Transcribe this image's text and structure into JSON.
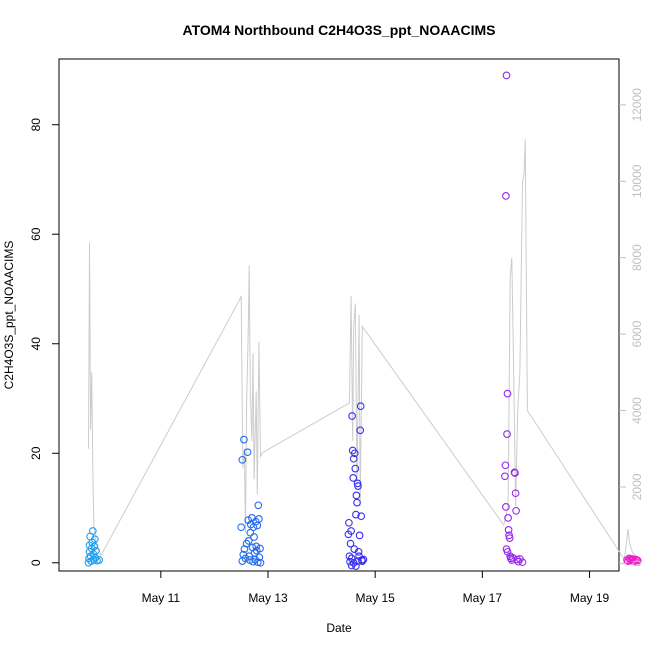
{
  "chart_data": {
    "type": "scatter",
    "title": "ATOM4 Northbound C2H4O3S_ppt_NOAACIMS",
    "xlabel": "Date",
    "ylabel": "C2H4O3S_ppt_NOAACIMS",
    "x_unit": "days since May 10 00:00",
    "xlim": [
      -0.9,
      9.55
    ],
    "ylim": [
      -1.5,
      92
    ],
    "x_ticks": [
      {
        "value": 1,
        "label": "May 11"
      },
      {
        "value": 3,
        "label": "May 13"
      },
      {
        "value": 5,
        "label": "May 15"
      },
      {
        "value": 7,
        "label": "May 17"
      },
      {
        "value": 9,
        "label": "May 19"
      }
    ],
    "y_ticks": [
      0,
      20,
      40,
      60,
      80
    ],
    "y2_ticks": [
      0,
      2000,
      4000,
      6000,
      8000,
      10000,
      12000
    ],
    "y2lim": [
      -200,
      13200
    ],
    "grid": false,
    "series": [
      {
        "name": "C2H4O3S_ppt_NOAACIMS",
        "kind": "points",
        "marker": "open-circle",
        "color_scale": [
          "#1EA0F0",
          "#1E7BEF",
          "#3A2BEF",
          "#8E2BF0",
          "#F01EC8"
        ],
        "points": [
          [
            -0.35,
            0.0
          ],
          [
            -0.34,
            0.8
          ],
          [
            -0.33,
            2.0
          ],
          [
            -0.33,
            3.2
          ],
          [
            -0.32,
            4.8
          ],
          [
            -0.31,
            1.2
          ],
          [
            -0.3,
            0.3
          ],
          [
            -0.29,
            2.6
          ],
          [
            -0.28,
            3.7
          ],
          [
            -0.27,
            5.8
          ],
          [
            -0.26,
            1.6
          ],
          [
            -0.25,
            0.6
          ],
          [
            -0.24,
            3.0
          ],
          [
            -0.23,
            4.3
          ],
          [
            -0.22,
            0.9
          ],
          [
            -0.21,
            2.2
          ],
          [
            -0.19,
            0.4
          ],
          [
            -0.15,
            0.5
          ],
          [
            2.52,
            18.8
          ],
          [
            2.55,
            22.5
          ],
          [
            2.5,
            6.5
          ],
          [
            2.52,
            0.3
          ],
          [
            2.54,
            1.5
          ],
          [
            2.56,
            2.5
          ],
          [
            2.58,
            0.8
          ],
          [
            2.6,
            3.5
          ],
          [
            2.62,
            20.2
          ],
          [
            2.63,
            7.8
          ],
          [
            2.64,
            4.0
          ],
          [
            2.65,
            1.2
          ],
          [
            2.66,
            0.5
          ],
          [
            2.67,
            5.5
          ],
          [
            2.68,
            7.0
          ],
          [
            2.7,
            8.2
          ],
          [
            2.71,
            2.8
          ],
          [
            2.72,
            0.2
          ],
          [
            2.73,
            6.5
          ],
          [
            2.74,
            4.7
          ],
          [
            2.75,
            1.8
          ],
          [
            2.76,
            0.6
          ],
          [
            2.77,
            7.5
          ],
          [
            2.78,
            3.0
          ],
          [
            2.79,
            2.2
          ],
          [
            2.8,
            6.8
          ],
          [
            2.81,
            0.1
          ],
          [
            2.82,
            10.5
          ],
          [
            2.83,
            8.0
          ],
          [
            2.84,
            1.0
          ],
          [
            2.85,
            2.6
          ],
          [
            2.86,
            0.0
          ],
          [
            4.5,
            5.2
          ],
          [
            4.51,
            7.3
          ],
          [
            4.52,
            1.2
          ],
          [
            4.53,
            0.2
          ],
          [
            4.54,
            3.5
          ],
          [
            4.55,
            5.8
          ],
          [
            4.56,
            0.8
          ],
          [
            4.57,
            26.8
          ],
          [
            4.58,
            20.5
          ],
          [
            4.59,
            15.5
          ],
          [
            4.6,
            19.0
          ],
          [
            4.61,
            2.5
          ],
          [
            4.62,
            20.0
          ],
          [
            4.63,
            17.2
          ],
          [
            4.64,
            8.8
          ],
          [
            4.65,
            12.3
          ],
          [
            4.66,
            11.0
          ],
          [
            4.67,
            14.5
          ],
          [
            4.68,
            14.0
          ],
          [
            4.69,
            2.0
          ],
          [
            4.7,
            1.2
          ],
          [
            4.71,
            5.0
          ],
          [
            4.72,
            24.2
          ],
          [
            4.73,
            28.6
          ],
          [
            4.74,
            8.5
          ],
          [
            4.75,
            0.5
          ],
          [
            4.76,
            0.3
          ],
          [
            4.78,
            0.6
          ],
          [
            4.56,
            -0.5
          ],
          [
            4.6,
            0.0
          ],
          [
            4.64,
            -0.6
          ],
          [
            4.68,
            0.3
          ],
          [
            7.45,
            89.0
          ],
          [
            7.44,
            67.0
          ],
          [
            7.47,
            30.9
          ],
          [
            7.46,
            23.5
          ],
          [
            7.43,
            17.8
          ],
          [
            7.42,
            15.8
          ],
          [
            7.44,
            10.2
          ],
          [
            7.48,
            8.2
          ],
          [
            7.49,
            6.0
          ],
          [
            7.5,
            5.0
          ],
          [
            7.51,
            4.5
          ],
          [
            7.45,
            2.5
          ],
          [
            7.47,
            2.0
          ],
          [
            7.52,
            1.2
          ],
          [
            7.53,
            0.8
          ],
          [
            7.55,
            0.5
          ],
          [
            7.57,
            0.9
          ],
          [
            7.6,
            16.5
          ],
          [
            7.61,
            16.4
          ],
          [
            7.62,
            12.7
          ],
          [
            7.63,
            9.5
          ],
          [
            7.65,
            0.6
          ],
          [
            7.67,
            0.2
          ],
          [
            7.7,
            0.7
          ],
          [
            7.75,
            0.1
          ],
          [
            9.7,
            0.5
          ],
          [
            9.72,
            0.3
          ],
          [
            9.74,
            0.8
          ],
          [
            9.76,
            0.6
          ],
          [
            9.78,
            0.4
          ],
          [
            9.8,
            0.7
          ],
          [
            9.82,
            0.5
          ],
          [
            9.84,
            0.3
          ],
          [
            9.86,
            0.6
          ],
          [
            9.88,
            0.5
          ],
          [
            9.9,
            0.4
          ]
        ]
      },
      {
        "name": "secondary (right axis)",
        "kind": "line",
        "axis": "right",
        "color": "#cccccc",
        "points": [
          [
            -0.35,
            3000
          ],
          [
            -0.33,
            8400
          ],
          [
            -0.31,
            3500
          ],
          [
            -0.29,
            5000
          ],
          [
            -0.27,
            2500
          ],
          [
            -0.25,
            1000
          ],
          [
            -0.2,
            500
          ],
          [
            -0.12,
            200
          ],
          [
            2.47,
            6900
          ],
          [
            2.5,
            7000
          ],
          [
            2.53,
            2500
          ],
          [
            2.56,
            3000
          ],
          [
            2.58,
            800
          ],
          [
            2.6,
            4200
          ],
          [
            2.63,
            6000
          ],
          [
            2.65,
            7800
          ],
          [
            2.67,
            4500
          ],
          [
            2.7,
            3200
          ],
          [
            2.72,
            5500
          ],
          [
            2.74,
            2200
          ],
          [
            2.78,
            4500
          ],
          [
            2.8,
            1800
          ],
          [
            2.83,
            5800
          ],
          [
            2.86,
            2800
          ],
          [
            2.9,
            2900
          ],
          [
            4.52,
            4200
          ],
          [
            4.55,
            7000
          ],
          [
            4.58,
            3200
          ],
          [
            4.6,
            6200
          ],
          [
            4.63,
            6800
          ],
          [
            4.66,
            2000
          ],
          [
            4.7,
            6500
          ],
          [
            4.72,
            1500
          ],
          [
            4.76,
            6200
          ],
          [
            7.4,
            1000
          ],
          [
            7.48,
            1500
          ],
          [
            7.52,
            7500
          ],
          [
            7.55,
            8000
          ],
          [
            7.58,
            5500
          ],
          [
            7.62,
            1500
          ],
          [
            7.66,
            4000
          ],
          [
            7.7,
            5000
          ],
          [
            7.75,
            10000
          ],
          [
            7.78,
            10200
          ],
          [
            7.8,
            11100
          ],
          [
            7.84,
            4000
          ],
          [
            9.65,
            100
          ],
          [
            9.72,
            900
          ],
          [
            9.75,
            500
          ],
          [
            9.8,
            300
          ],
          [
            9.86,
            200
          ]
        ]
      }
    ]
  }
}
